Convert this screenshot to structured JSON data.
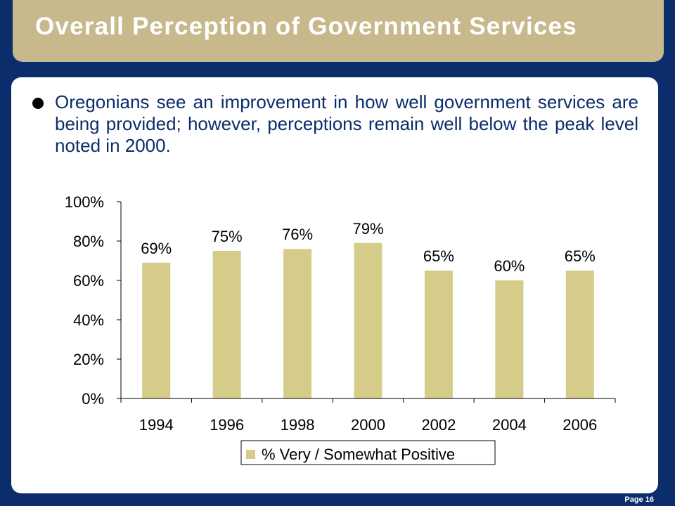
{
  "slide": {
    "title": "Overall Perception of Government Services",
    "bullet": "Oregonians see an improvement in how well government services are being provided; however, perceptions remain well below the peak level noted in 2000.",
    "page_label": "Page 16"
  },
  "colors": {
    "background": "#0b2d6b",
    "title_bar": "#c8b98c",
    "bar_fill": "#d6cc8a"
  },
  "chart_data": {
    "type": "bar",
    "categories": [
      "1994",
      "1996",
      "1998",
      "2000",
      "2002",
      "2004",
      "2006"
    ],
    "series": [
      {
        "name": "% Very / Somewhat Positive",
        "values": [
          69,
          75,
          76,
          79,
          65,
          60,
          65
        ],
        "labels": [
          "69%",
          "75%",
          "76%",
          "79%",
          "65%",
          "60%",
          "65%"
        ]
      }
    ],
    "ylim": [
      0,
      100
    ],
    "yticks": [
      0,
      20,
      40,
      60,
      80,
      100
    ],
    "ytick_labels": [
      "0%",
      "20%",
      "40%",
      "60%",
      "80%",
      "100%"
    ],
    "grid": false,
    "legend": "bottom"
  }
}
